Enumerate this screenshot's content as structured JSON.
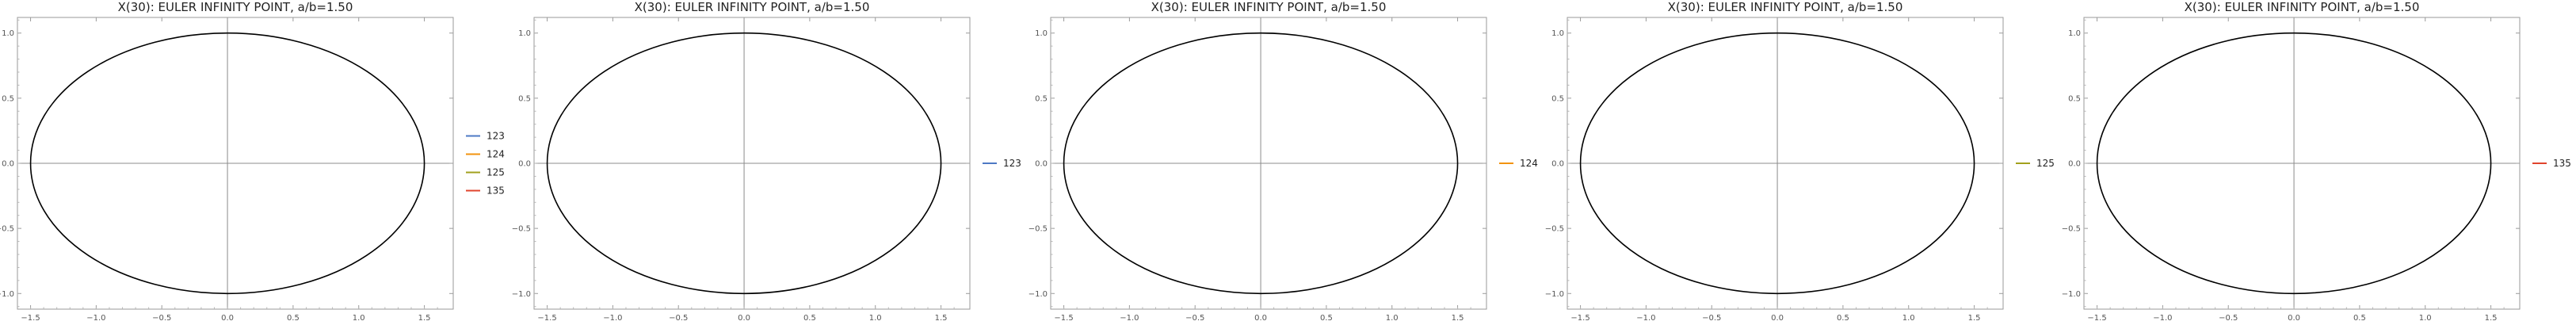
{
  "chart_data": [
    {
      "type": "line",
      "title": "X(30): EULER INFINITY POINT, a/b=1.50",
      "xlabel": "",
      "ylabel": "",
      "xlim": [
        -1.6,
        1.72
      ],
      "ylim": [
        -1.12,
        1.12
      ],
      "x_ticks": [
        "−1.5",
        "−1.0",
        "−0.5",
        "0.0",
        "0.5",
        "1.0",
        "1.5"
      ],
      "y_ticks": [
        "−1.0",
        "−0.5",
        "0.0",
        "0.5",
        "1.0"
      ],
      "grid": false,
      "legend_position": "right",
      "curve": {
        "shape": "ellipse",
        "a": 1.5,
        "b": 1.0,
        "color": "#000000"
      },
      "series": [
        {
          "name": "123",
          "color": "#4e79c4"
        },
        {
          "name": "124",
          "color": "#f2930f"
        },
        {
          "name": "125",
          "color": "#a2a01d"
        },
        {
          "name": "135",
          "color": "#e0442d"
        }
      ]
    },
    {
      "type": "line",
      "title": "X(30): EULER INFINITY POINT, a/b=1.50",
      "xlabel": "",
      "ylabel": "",
      "xlim": [
        -1.6,
        1.72
      ],
      "ylim": [
        -1.12,
        1.12
      ],
      "x_ticks": [
        "−1.5",
        "−1.0",
        "−0.5",
        "0.0",
        "0.5",
        "1.0",
        "1.5"
      ],
      "y_ticks": [
        "−1.0",
        "−0.5",
        "0.0",
        "0.5",
        "1.0"
      ],
      "grid": false,
      "legend_position": "right",
      "curve": {
        "shape": "ellipse",
        "a": 1.5,
        "b": 1.0,
        "color": "#000000"
      },
      "series": [
        {
          "name": "123",
          "color": "#4e79c4"
        }
      ]
    },
    {
      "type": "line",
      "title": "X(30): EULER INFINITY POINT, a/b=1.50",
      "xlabel": "",
      "ylabel": "",
      "xlim": [
        -1.6,
        1.72
      ],
      "ylim": [
        -1.12,
        1.12
      ],
      "x_ticks": [
        "−1.5",
        "−1.0",
        "−0.5",
        "0.0",
        "0.5",
        "1.0",
        "1.5"
      ],
      "y_ticks": [
        "−1.0",
        "−0.5",
        "0.0",
        "0.5",
        "1.0"
      ],
      "grid": false,
      "legend_position": "right",
      "curve": {
        "shape": "ellipse",
        "a": 1.5,
        "b": 1.0,
        "color": "#000000"
      },
      "series": [
        {
          "name": "124",
          "color": "#f2930f"
        }
      ]
    },
    {
      "type": "line",
      "title": "X(30): EULER INFINITY POINT, a/b=1.50",
      "xlabel": "",
      "ylabel": "",
      "xlim": [
        -1.6,
        1.72
      ],
      "ylim": [
        -1.12,
        1.12
      ],
      "x_ticks": [
        "−1.5",
        "−1.0",
        "−0.5",
        "0.0",
        "0.5",
        "1.0",
        "1.5"
      ],
      "y_ticks": [
        "−1.0",
        "−0.5",
        "0.0",
        "0.5",
        "1.0"
      ],
      "grid": false,
      "legend_position": "right",
      "curve": {
        "shape": "ellipse",
        "a": 1.5,
        "b": 1.0,
        "color": "#000000"
      },
      "series": [
        {
          "name": "125",
          "color": "#a2a01d"
        }
      ]
    },
    {
      "type": "line",
      "title": "X(30): EULER INFINITY POINT, a/b=1.50",
      "xlabel": "",
      "ylabel": "",
      "xlim": [
        -1.6,
        1.72
      ],
      "ylim": [
        -1.12,
        1.12
      ],
      "x_ticks": [
        "−1.5",
        "−1.0",
        "−0.5",
        "0.0",
        "0.5",
        "1.0",
        "1.5"
      ],
      "y_ticks": [
        "−1.0",
        "−0.5",
        "0.0",
        "0.5",
        "1.0"
      ],
      "grid": false,
      "legend_position": "right",
      "curve": {
        "shape": "ellipse",
        "a": 1.5,
        "b": 1.0,
        "color": "#000000"
      },
      "series": [
        {
          "name": "135",
          "color": "#e0442d"
        }
      ]
    }
  ]
}
